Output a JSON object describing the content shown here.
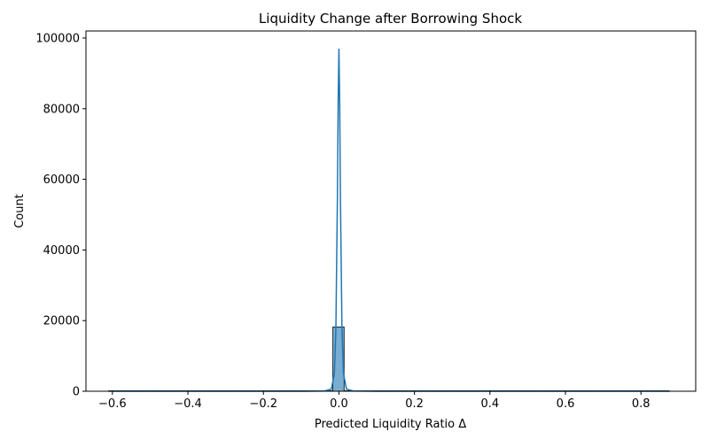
{
  "chart_data": {
    "type": "bar",
    "title": "Liquidity Change after Borrowing Shock",
    "xlabel": "Predicted Liquidity Ratio Δ",
    "ylabel": "Count",
    "xlim": [
      -0.67,
      0.945
    ],
    "ylim": [
      0,
      102000
    ],
    "xticks": [
      -0.6,
      -0.4,
      -0.2,
      0.0,
      0.2,
      0.4,
      0.6,
      0.8
    ],
    "xtick_labels": [
      "−0.6",
      "−0.4",
      "−0.2",
      "0.0",
      "0.2",
      "0.4",
      "0.6",
      "0.8"
    ],
    "yticks": [
      0,
      20000,
      40000,
      60000,
      80000,
      100000
    ],
    "ytick_labels": [
      "0",
      "20000",
      "40000",
      "60000",
      "80000",
      "100000"
    ],
    "data_range": [
      -0.61,
      0.875
    ],
    "bin_count": 50,
    "bins": [
      {
        "x0": -0.0157,
        "x1": 0.014,
        "count": 18200
      }
    ],
    "kde_curve": {
      "x": [
        -0.61,
        -0.3,
        -0.1,
        -0.04,
        -0.02,
        -0.012,
        -0.008,
        -0.004,
        -0.002,
        0.0,
        0.002,
        0.004,
        0.008,
        0.012,
        0.02,
        0.04,
        0.1,
        0.4,
        0.875
      ],
      "y": [
        0,
        0,
        0,
        50,
        600,
        5000,
        18000,
        55000,
        82000,
        97000,
        82000,
        55000,
        18000,
        5000,
        600,
        50,
        0,
        0,
        0
      ]
    },
    "grid": false,
    "bar_color": "#1f77b4",
    "bar_alpha": 0.6,
    "line_color": "#1f77b4"
  }
}
